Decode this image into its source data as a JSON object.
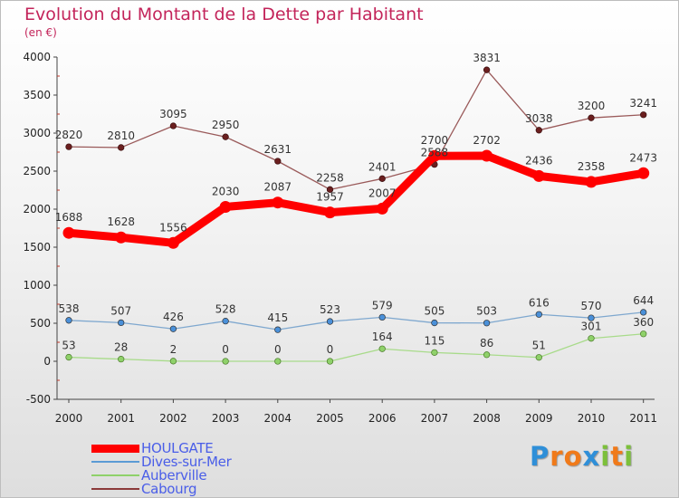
{
  "title": "Evolution du Montant de la Dette par Habitant",
  "subtitle": "(en €)",
  "logo_letters": [
    {
      "ch": "P",
      "color": "#2f8fd8"
    },
    {
      "ch": "r",
      "color": "#f07a1a"
    },
    {
      "ch": "o",
      "color": "#f07a1a"
    },
    {
      "ch": "x",
      "color": "#2f8fd8"
    },
    {
      "ch": "i",
      "color": "#7cc03a"
    },
    {
      "ch": "t",
      "color": "#f07a1a"
    },
    {
      "ch": "i",
      "color": "#7cc03a"
    }
  ],
  "chart_data": {
    "type": "line",
    "title": "Evolution du Montant de la Dette par Habitant",
    "subtitle": "(en €)",
    "x": [
      "2000",
      "2001",
      "2002",
      "2003",
      "2004",
      "2005",
      "2006",
      "2007",
      "2008",
      "2009",
      "2010",
      "2011"
    ],
    "ylim": [
      -500,
      4000
    ],
    "yticks": [
      "-500",
      "0",
      "500",
      "1000",
      "1500",
      "2000",
      "2500",
      "3000",
      "3500",
      "4000"
    ],
    "grid": false,
    "legend_position": "bottom-left",
    "series": [
      {
        "name": "HOULGATE",
        "color": "#ff0000",
        "values": [
          1688,
          1628,
          1556,
          2030,
          2087,
          1957,
          2007,
          2700,
          2702,
          2436,
          2358,
          2473
        ],
        "labels": [
          "1688",
          "1628",
          "1556",
          "2030",
          "2087",
          "1957",
          "2007",
          "2700",
          "2702",
          "2436",
          "2358",
          "2473"
        ]
      },
      {
        "name": "Dives-sur-Mer",
        "color": "#5b9bd5",
        "values": [
          538,
          507,
          426,
          528,
          415,
          523,
          579,
          505,
          503,
          616,
          570,
          644
        ],
        "labels": [
          "538",
          "507",
          "426",
          "528",
          "415",
          "523",
          "579",
          "505",
          "503",
          "616",
          "570",
          "644"
        ]
      },
      {
        "name": "Auberville",
        "color": "#8fd16a",
        "values": [
          53,
          28,
          2,
          0,
          0,
          0,
          164,
          115,
          86,
          51,
          301,
          360
        ],
        "labels": [
          "53",
          "28",
          "2",
          "0",
          "0",
          "0",
          "164",
          "115",
          "86",
          "51",
          "301",
          "360"
        ]
      },
      {
        "name": "Cabourg",
        "color": "#8b3a3a",
        "values": [
          2820,
          2810,
          3095,
          2950,
          2631,
          2258,
          2401,
          2588,
          3831,
          3038,
          3200,
          3241
        ],
        "labels": [
          "2820",
          "2810",
          "3095",
          "2950",
          "2631",
          "2258",
          "2401",
          "2588",
          "3831",
          "3038",
          "3200",
          "3241"
        ]
      }
    ]
  }
}
